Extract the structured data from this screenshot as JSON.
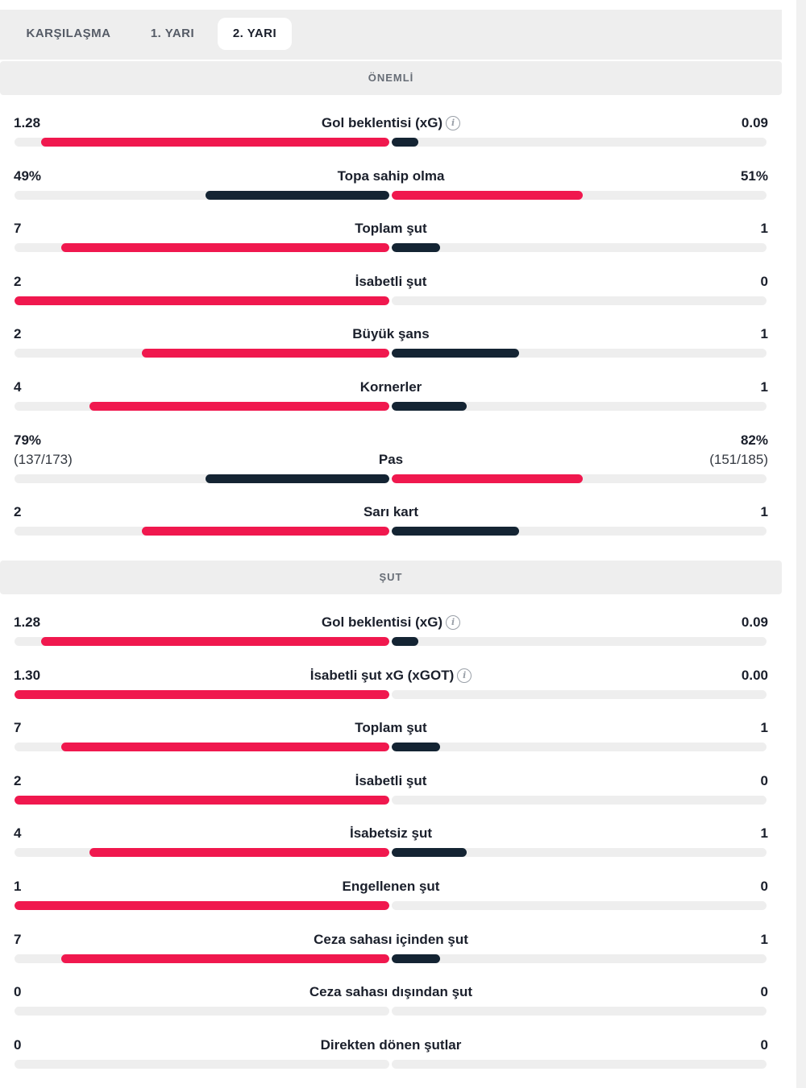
{
  "colors": {
    "home": "#f0184e",
    "away": "#142433",
    "track": "#eeeeee"
  },
  "tabs": [
    {
      "label": "KARŞILAŞMA",
      "active": false
    },
    {
      "label": "1. YARI",
      "active": false
    },
    {
      "label": "2. YARI",
      "active": true
    }
  ],
  "sections": [
    {
      "title": "ÖNEMLİ",
      "stats": [
        {
          "label": "Gol beklentisi (xG)",
          "info": true,
          "left": "1.28",
          "right": "0.09",
          "left_share": 0.93,
          "right_share": 0.07,
          "left_color": "home",
          "right_color": "away"
        },
        {
          "label": "Topa sahip olma",
          "info": false,
          "left": "49%",
          "right": "51%",
          "left_share": 0.49,
          "right_share": 0.51,
          "left_color": "away",
          "right_color": "home"
        },
        {
          "label": "Toplam şut",
          "info": false,
          "left": "7",
          "right": "1",
          "left_share": 0.875,
          "right_share": 0.13,
          "left_color": "home",
          "right_color": "away"
        },
        {
          "label": "İsabetli şut",
          "info": false,
          "left": "2",
          "right": "0",
          "left_share": 1.0,
          "right_share": 0.0,
          "left_color": "home",
          "right_color": "away"
        },
        {
          "label": "Büyük şans",
          "info": false,
          "left": "2",
          "right": "1",
          "left_share": 0.66,
          "right_share": 0.34,
          "left_color": "home",
          "right_color": "away"
        },
        {
          "label": "Kornerler",
          "info": false,
          "left": "4",
          "right": "1",
          "left_share": 0.8,
          "right_share": 0.2,
          "left_color": "home",
          "right_color": "away"
        },
        {
          "label": "Pas",
          "info": false,
          "left": "79%",
          "left_sub": "(137/173)",
          "right": "82%",
          "right_sub": "(151/185)",
          "left_share": 0.49,
          "right_share": 0.51,
          "left_color": "away",
          "right_color": "home"
        },
        {
          "label": "Sarı kart",
          "info": false,
          "left": "2",
          "right": "1",
          "left_share": 0.66,
          "right_share": 0.34,
          "left_color": "home",
          "right_color": "away"
        }
      ]
    },
    {
      "title": "ŞUT",
      "stats": [
        {
          "label": "Gol beklentisi (xG)",
          "info": true,
          "left": "1.28",
          "right": "0.09",
          "left_share": 0.93,
          "right_share": 0.07,
          "left_color": "home",
          "right_color": "away"
        },
        {
          "label": "İsabetli şut xG (xGOT)",
          "info": true,
          "left": "1.30",
          "right": "0.00",
          "left_share": 1.0,
          "right_share": 0.0,
          "left_color": "home",
          "right_color": "away"
        },
        {
          "label": "Toplam şut",
          "info": false,
          "left": "7",
          "right": "1",
          "left_share": 0.875,
          "right_share": 0.13,
          "left_color": "home",
          "right_color": "away"
        },
        {
          "label": "İsabetli şut",
          "info": false,
          "left": "2",
          "right": "0",
          "left_share": 1.0,
          "right_share": 0.0,
          "left_color": "home",
          "right_color": "away"
        },
        {
          "label": "İsabetsiz şut",
          "info": false,
          "left": "4",
          "right": "1",
          "left_share": 0.8,
          "right_share": 0.2,
          "left_color": "home",
          "right_color": "away"
        },
        {
          "label": "Engellenen şut",
          "info": false,
          "left": "1",
          "right": "0",
          "left_share": 1.0,
          "right_share": 0.0,
          "left_color": "home",
          "right_color": "away"
        },
        {
          "label": "Ceza sahası içinden şut",
          "info": false,
          "left": "7",
          "right": "1",
          "left_share": 0.875,
          "right_share": 0.13,
          "left_color": "home",
          "right_color": "away"
        },
        {
          "label": "Ceza sahası dışından şut",
          "info": false,
          "left": "0",
          "right": "0",
          "left_share": 0.0,
          "right_share": 0.0,
          "left_color": "home",
          "right_color": "away"
        },
        {
          "label": "Direkten dönen şutlar",
          "info": false,
          "left": "0",
          "right": "0",
          "left_share": 0.0,
          "right_share": 0.0,
          "left_color": "home",
          "right_color": "away"
        }
      ]
    }
  ]
}
